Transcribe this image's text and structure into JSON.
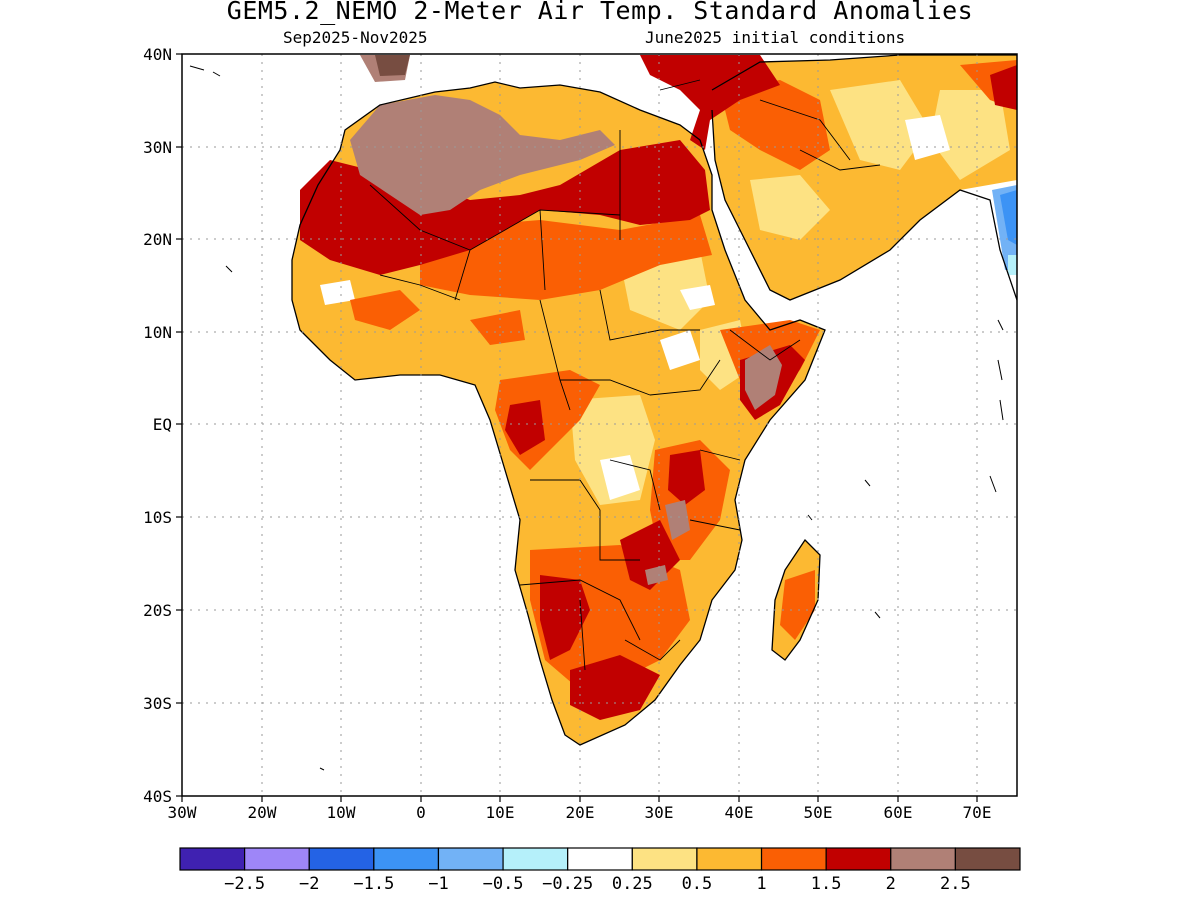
{
  "title": "GEM5.2_NEMO 2-Meter Air Temp. Standard Anomalies",
  "period": "Sep2025-Nov2025",
  "init": "June2025 initial conditions",
  "lat_labels": [
    "40N",
    "30N",
    "20N",
    "10N",
    "EQ",
    "10S",
    "20S",
    "30S",
    "40S"
  ],
  "lon_labels": [
    "30W",
    "20W",
    "10W",
    "0",
    "10E",
    "20E",
    "30E",
    "40E",
    "50E",
    "60E",
    "70E"
  ],
  "colorbar": {
    "colors": [
      "#3f21b1",
      "#9e86f8",
      "#2463e5",
      "#3c93f5",
      "#72b2f6",
      "#b5f0fa",
      "#ffffff",
      "#fde283",
      "#fcb932",
      "#fa5f04",
      "#c10000",
      "#b08076",
      "#774d41"
    ],
    "labels": [
      "-2.5",
      "-2",
      "-1.5",
      "-1",
      "-0.5",
      "-0.25",
      "0.25",
      "0.5",
      "1",
      "1.5",
      "2",
      "2.5"
    ]
  }
}
